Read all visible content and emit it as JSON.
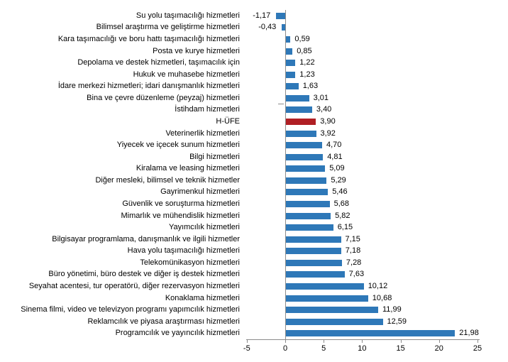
{
  "chart_data": {
    "type": "bar",
    "orientation": "horizontal",
    "title": "",
    "xlabel": "",
    "ylabel": "",
    "xlim": [
      -5,
      25
    ],
    "grid": false,
    "legend": false,
    "bar_color": "#2e78b8",
    "highlight_color": "#b01f24",
    "highlight_category": "H-ÜFE",
    "categories": [
      "Su yolu taşımacılığı hizmetleri",
      "Bilimsel araştırma ve geliştirme hizmetleri",
      "Kara taşımacılığı ve boru hattı taşımacılığı hizmetleri",
      "Posta ve kurye hizmetleri",
      "Depolama ve destek hizmetleri, taşımacılık için",
      "Hukuk ve muhasebe hizmetleri",
      "İdare merkezi hizmetleri; idari danışmanlık hizmetleri",
      "Bina ve çevre düzenleme (peyzaj) hizmetleri",
      "İstihdam hizmetleri",
      "H-ÜFE",
      "Veterinerlik hizmetleri",
      "Yiyecek ve içecek sunum hizmetleri",
      "Bilgi hizmetleri",
      "Kiralama ve leasing hizmetleri",
      "Diğer mesleki, bilimsel ve teknik hizmetler",
      "Gayrimenkul hizmetleri",
      "Güvenlik ve soruşturma hizmetleri",
      "Mimarlık ve mühendislik hizmetleri",
      "Yayımcılık hizmetleri",
      "Bilgisayar programlama, danışmanlık ve ilgili hizmetler",
      "Hava yolu taşımacılığı hizmetleri",
      "Telekomünikasyon hizmetleri",
      "Büro yönetimi, büro destek ve diğer iş destek hizmetleri",
      "Seyahat acentesi, tur operatörü, diğer rezervasyon hizmetleri",
      "Konaklama hizmetleri",
      "Sinema filmi, video ve televizyon programı yapımcılık hizmetleri",
      "Reklamcılık ve piyasa araştırması hizmetleri",
      "Programcılık ve yayıncılık hizmetleri"
    ],
    "values": [
      -1.17,
      -0.43,
      0.59,
      0.85,
      1.22,
      1.23,
      1.63,
      3.01,
      3.4,
      3.9,
      3.92,
      4.7,
      4.81,
      5.09,
      5.29,
      5.46,
      5.68,
      5.82,
      6.15,
      7.15,
      7.18,
      7.28,
      7.63,
      10.12,
      10.68,
      11.99,
      12.59,
      21.98
    ],
    "value_labels": [
      "-1,17",
      "-0,43",
      "0,59",
      "0,85",
      "1,22",
      "1,23",
      "1,63",
      "3,01",
      "3,40",
      "3,90",
      "3,92",
      "4,70",
      "4,81",
      "5,09",
      "5,29",
      "5,46",
      "5,68",
      "5,82",
      "6,15",
      "7,15",
      "7,18",
      "7,28",
      "7,63",
      "10,12",
      "10,68",
      "11,99",
      "12,59",
      "21,98"
    ],
    "x_ticks": [
      -5,
      0,
      5,
      10,
      15,
      20,
      25
    ],
    "x_tick_labels": [
      "-5",
      "0",
      "5",
      "10",
      "15",
      "20",
      "25"
    ]
  },
  "colors": {
    "background": "#ffffff",
    "axis": "#8c8c8c",
    "text": "#000000",
    "bar": "#2e78b8",
    "highlight": "#b01f24"
  }
}
